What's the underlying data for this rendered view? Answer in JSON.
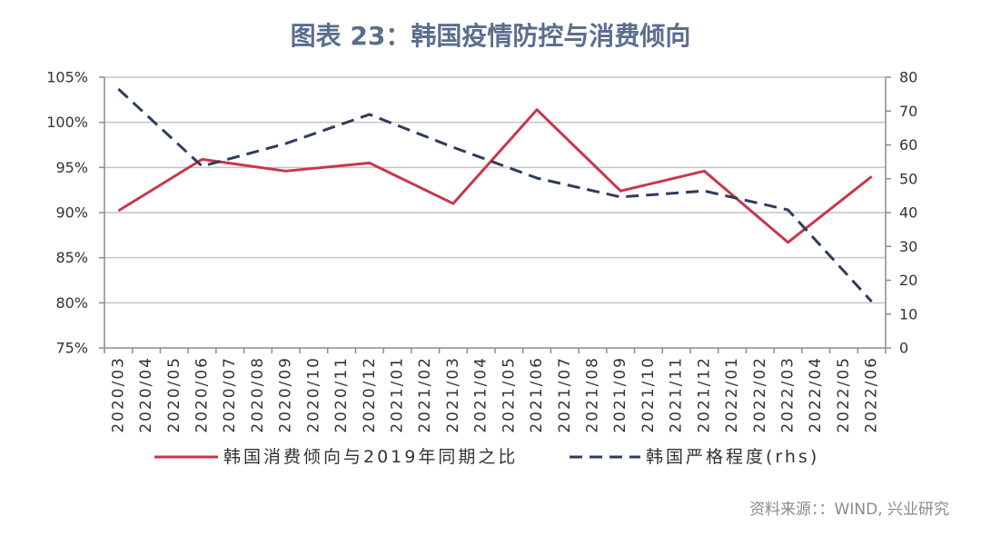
{
  "chart_data": {
    "type": "line",
    "title": "图表 23：韩国疫情防控与消费倾向",
    "categories": [
      "2020/03",
      "2020/04",
      "2020/05",
      "2020/06",
      "2020/07",
      "2020/08",
      "2020/09",
      "2020/10",
      "2020/11",
      "2020/12",
      "2021/01",
      "2021/02",
      "2021/03",
      "2021/04",
      "2021/05",
      "2021/06",
      "2021/07",
      "2021/08",
      "2021/09",
      "2021/10",
      "2021/11",
      "2021/12",
      "2022/01",
      "2022/02",
      "2022/03",
      "2022/04",
      "2022/05",
      "2022/06"
    ],
    "y_left": {
      "min": 75,
      "max": 105,
      "unit": "%",
      "ticks": [
        "75%",
        "80%",
        "85%",
        "90%",
        "95%",
        "100%",
        "105%"
      ]
    },
    "y_right": {
      "min": 0,
      "max": 80,
      "ticks": [
        "0",
        "10",
        "20",
        "30",
        "40",
        "50",
        "60",
        "70",
        "80"
      ]
    },
    "series": [
      {
        "name": "韩国消费倾向与2019年同期之比",
        "axis": "left",
        "color": "#c8374b",
        "style": "solid",
        "values": [
          90.2,
          null,
          null,
          95.9,
          null,
          null,
          94.6,
          null,
          null,
          95.5,
          null,
          null,
          91.0,
          null,
          null,
          101.4,
          null,
          null,
          92.4,
          null,
          null,
          94.6,
          null,
          null,
          86.7,
          null,
          null,
          94.0
        ]
      },
      {
        "name": "韩国严格程度(rhs)",
        "axis": "right",
        "color": "#2e3d5c",
        "style": "dashed",
        "values": [
          76.5,
          null,
          null,
          53.7,
          null,
          null,
          60.4,
          null,
          null,
          69.0,
          null,
          null,
          59.3,
          null,
          null,
          50.2,
          null,
          null,
          44.6,
          null,
          null,
          46.4,
          null,
          null,
          40.8,
          null,
          null,
          13.7
        ]
      }
    ],
    "grid": true,
    "legend_position": "bottom"
  },
  "source": "资料来源：：WIND, 兴业研究"
}
